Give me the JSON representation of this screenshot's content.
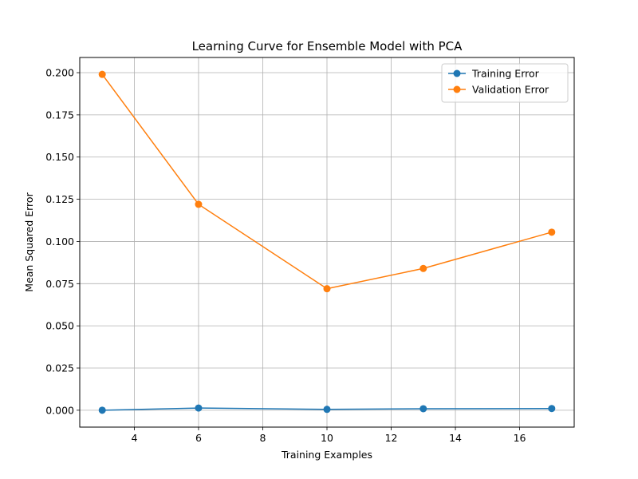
{
  "chart_data": {
    "type": "line",
    "title": "Learning Curve for Ensemble Model with PCA",
    "xlabel": "Training Examples",
    "ylabel": "Mean Squared Error",
    "x": [
      3,
      6,
      10,
      13,
      17
    ],
    "xlim": [
      2.3,
      17.7
    ],
    "ylim": [
      -0.01,
      0.209
    ],
    "xticks": [
      4,
      6,
      8,
      10,
      12,
      14,
      16
    ],
    "xtick_labels": [
      "4",
      "6",
      "8",
      "10",
      "12",
      "14",
      "16"
    ],
    "yticks": [
      0.0,
      0.025,
      0.05,
      0.075,
      0.1,
      0.125,
      0.15,
      0.175,
      0.2
    ],
    "ytick_labels": [
      "0.000",
      "0.025",
      "0.050",
      "0.075",
      "0.100",
      "0.125",
      "0.150",
      "0.175",
      "0.200"
    ],
    "grid": true,
    "legend_position": "top-right",
    "series": [
      {
        "name": "Training Error",
        "color": "#1f77b4",
        "marker": "circle",
        "values": [
          0.0,
          0.0013,
          0.0005,
          0.0009,
          0.001
        ]
      },
      {
        "name": "Validation Error",
        "color": "#ff7f0e",
        "marker": "circle",
        "values": [
          0.199,
          0.122,
          0.072,
          0.084,
          0.1055
        ]
      }
    ]
  }
}
